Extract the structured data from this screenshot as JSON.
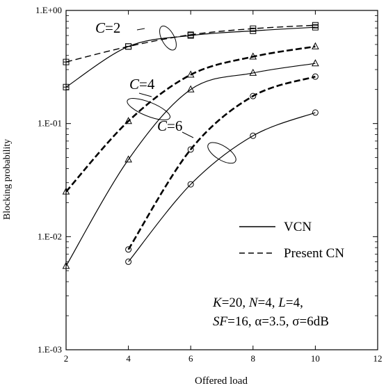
{
  "chart_data": {
    "type": "line",
    "xlabel": "Offered load",
    "ylabel": "Blocking probability",
    "xlim": [
      2,
      12
    ],
    "ylim": [
      0.001,
      1.0
    ],
    "yscale": "log",
    "grid": false,
    "x_ticks": [
      "2",
      "4",
      "6",
      "8",
      "10",
      "12"
    ],
    "y_ticks": [
      "1.E+00",
      "1.E-01",
      "1.E-02",
      "1.E-03"
    ],
    "legend": {
      "placement": "lower-right",
      "entries": [
        {
          "label": "VCN",
          "style": "solid"
        },
        {
          "label": "Present CN",
          "style": "dashed"
        }
      ]
    },
    "parameters_line1": "K=20, N=4, L=4,",
    "parameters_line2": "SF=16, α=3.5, σ=6dB",
    "group_labels": [
      "C=2",
      "C=4",
      "C=6"
    ],
    "series": [
      {
        "group": "C=2",
        "style": "solid",
        "marker": "square",
        "x": [
          2,
          4,
          6,
          8,
          10
        ],
        "y": [
          0.21,
          0.48,
          0.6,
          0.66,
          0.71
        ]
      },
      {
        "group": "C=2",
        "style": "dashed",
        "marker": "square",
        "x": [
          2,
          4,
          6,
          8,
          10
        ],
        "y": [
          0.35,
          0.48,
          0.61,
          0.69,
          0.74
        ]
      },
      {
        "group": "C=4",
        "style": "solid",
        "marker": "triangle",
        "x": [
          2,
          4,
          6,
          8,
          10
        ],
        "y": [
          0.0055,
          0.048,
          0.2,
          0.28,
          0.34
        ]
      },
      {
        "group": "C=4",
        "style": "dashed-bold",
        "marker": "triangle",
        "x": [
          2,
          4,
          6,
          8,
          10
        ],
        "y": [
          0.025,
          0.105,
          0.27,
          0.39,
          0.48
        ]
      },
      {
        "group": "C=6",
        "style": "solid",
        "marker": "circle",
        "x": [
          4,
          6,
          8,
          10
        ],
        "y": [
          0.006,
          0.029,
          0.078,
          0.125
        ]
      },
      {
        "group": "C=6",
        "style": "dashed-bold",
        "marker": "circle",
        "x": [
          4,
          6,
          8,
          10
        ],
        "y": [
          0.0077,
          0.059,
          0.175,
          0.26
        ]
      }
    ]
  }
}
